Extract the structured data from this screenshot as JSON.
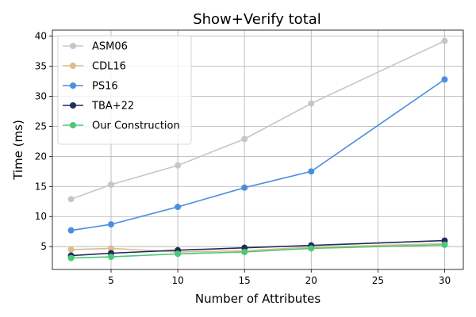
{
  "chart_data": {
    "type": "line",
    "title": "Show+Verify total",
    "xlabel": "Number of Attributes",
    "ylabel": "Time (ms)",
    "x": [
      2,
      5,
      10,
      15,
      20,
      30
    ],
    "xlim": [
      0.6,
      31.4
    ],
    "ylim": [
      1.2,
      41.0
    ],
    "xticks": [
      5,
      10,
      15,
      20,
      25,
      30
    ],
    "yticks": [
      5,
      10,
      15,
      20,
      25,
      30,
      35,
      40
    ],
    "grid": true,
    "legend_position": "top-left",
    "series": [
      {
        "name": "ASM06",
        "color": "#c3c6cc",
        "values": [
          12.9,
          15.3,
          18.5,
          22.9,
          28.8,
          39.2
        ]
      },
      {
        "name": "CDL16",
        "color": "#dcbc8c",
        "values": [
          4.5,
          4.7,
          4.1,
          4.3,
          4.9,
          5.5
        ]
      },
      {
        "name": "PS16",
        "color": "#4a8ee0",
        "values": [
          7.7,
          8.7,
          11.6,
          14.8,
          17.5,
          32.8
        ]
      },
      {
        "name": "TBA+22",
        "color": "#1e2d5a",
        "values": [
          3.5,
          3.9,
          4.4,
          4.8,
          5.2,
          6.0
        ]
      },
      {
        "name": "Our Construction",
        "color": "#4cc878",
        "values": [
          3.1,
          3.3,
          3.8,
          4.1,
          4.7,
          5.3
        ]
      }
    ]
  }
}
